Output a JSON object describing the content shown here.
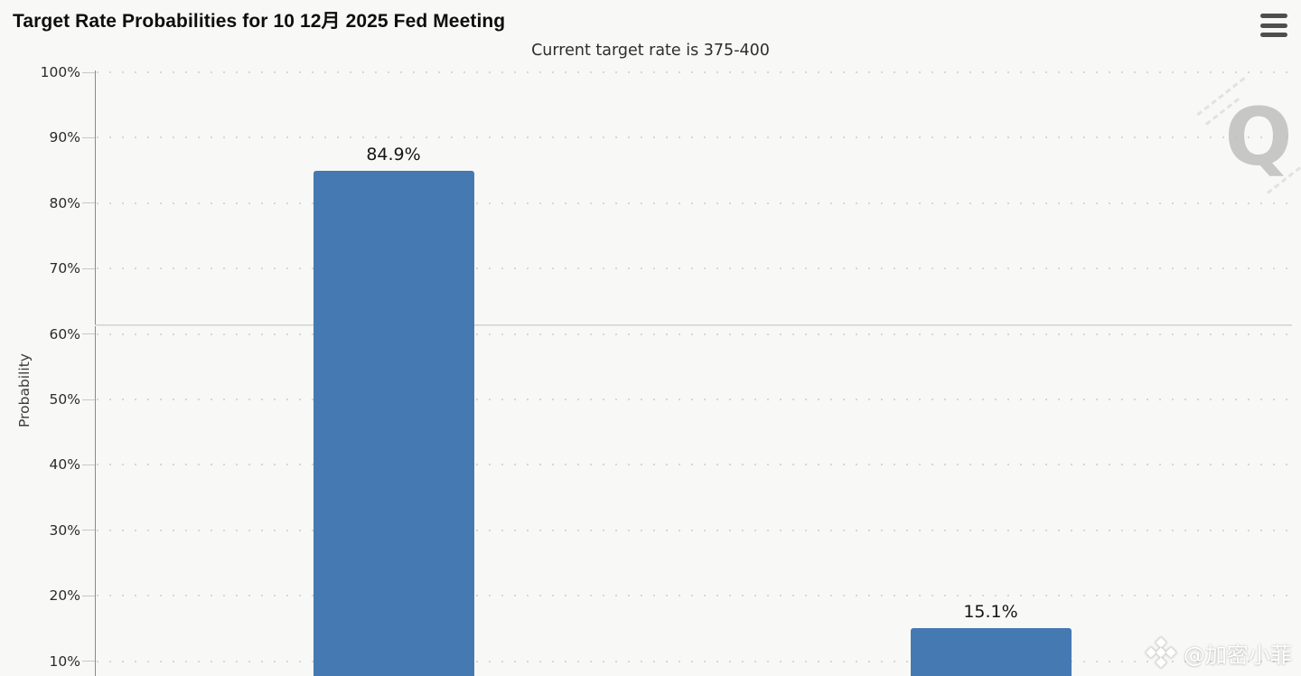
{
  "header": {
    "title": "Target Rate Probabilities for 10 12月 2025 Fed Meeting"
  },
  "chart": {
    "subtitle": "Current target rate is 375-400",
    "ylabel": "Probability"
  },
  "watermarks": {
    "logo_letter": "Q",
    "credit_text": "@加密小菲"
  },
  "chart_data": {
    "type": "bar",
    "title": "Target Rate Probabilities for 10 12月 2025 Fed Meeting",
    "subtitle": "Current target rate is 375-400",
    "ylabel": "Probability",
    "categories": [
      "",
      ""
    ],
    "values": [
      84.9,
      15.1
    ],
    "bar_labels": [
      "84.9%",
      "15.1%"
    ],
    "y_ticks_pct": [
      100,
      90,
      80,
      70,
      60,
      50,
      40,
      30,
      20,
      10
    ],
    "y_tick_suffix": "%",
    "ylim": [
      0,
      100
    ],
    "grid": "dotted-horizontal",
    "legend": "none",
    "reference_line_pct": 61.5,
    "bar_color": "#4579b2"
  },
  "colors": {
    "background": "#f8f8f6",
    "bar": "#4579b2",
    "axis": "#8a8a8a",
    "grid_dot": "#d7d7d4",
    "reference_line": "#cfcfcc",
    "title_text": "#0e0e0e",
    "logo_watermark": "#bfbfbd"
  }
}
